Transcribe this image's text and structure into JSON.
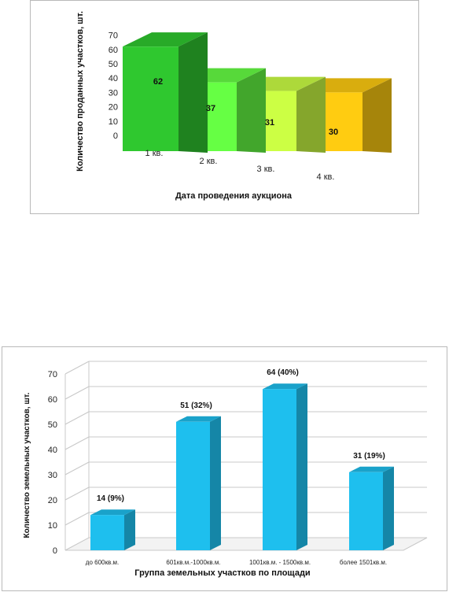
{
  "chart_data": [
    {
      "type": "bar",
      "categories": [
        "1 кв.",
        "2 кв.",
        "3 кв.",
        "4 кв."
      ],
      "values": [
        62,
        37,
        31,
        30
      ],
      "data_labels": [
        "62",
        "37",
        "31",
        "30"
      ],
      "xlabel": "Дата проведения аукциона",
      "ylabel": "Количество проданных участков, шт.",
      "ylim": [
        0,
        70
      ],
      "yticks": [
        0,
        10,
        20,
        30,
        40,
        50,
        60,
        70
      ],
      "colors": [
        "#2fc82f",
        "#66ff44",
        "#ccff44",
        "#ffcc11"
      ],
      "grid": false
    },
    {
      "type": "bar",
      "categories": [
        "до 600кв.м.",
        "601кв.м.-1000кв.м.",
        "1001кв.м. - 1500кв.м.",
        "более 1501кв.м."
      ],
      "values": [
        14,
        51,
        64,
        31
      ],
      "data_labels": [
        "14 (9%)",
        "51 (32%)",
        "64 (40%)",
        "31 (19%)"
      ],
      "xlabel": "Группа земельных участков по площади",
      "ylabel": "Количество земельных участков, шт.",
      "ylim": [
        0,
        70
      ],
      "yticks": [
        0,
        10,
        20,
        30,
        40,
        50,
        60,
        70
      ],
      "colors": [
        "#1ebfee"
      ],
      "grid": true
    }
  ]
}
